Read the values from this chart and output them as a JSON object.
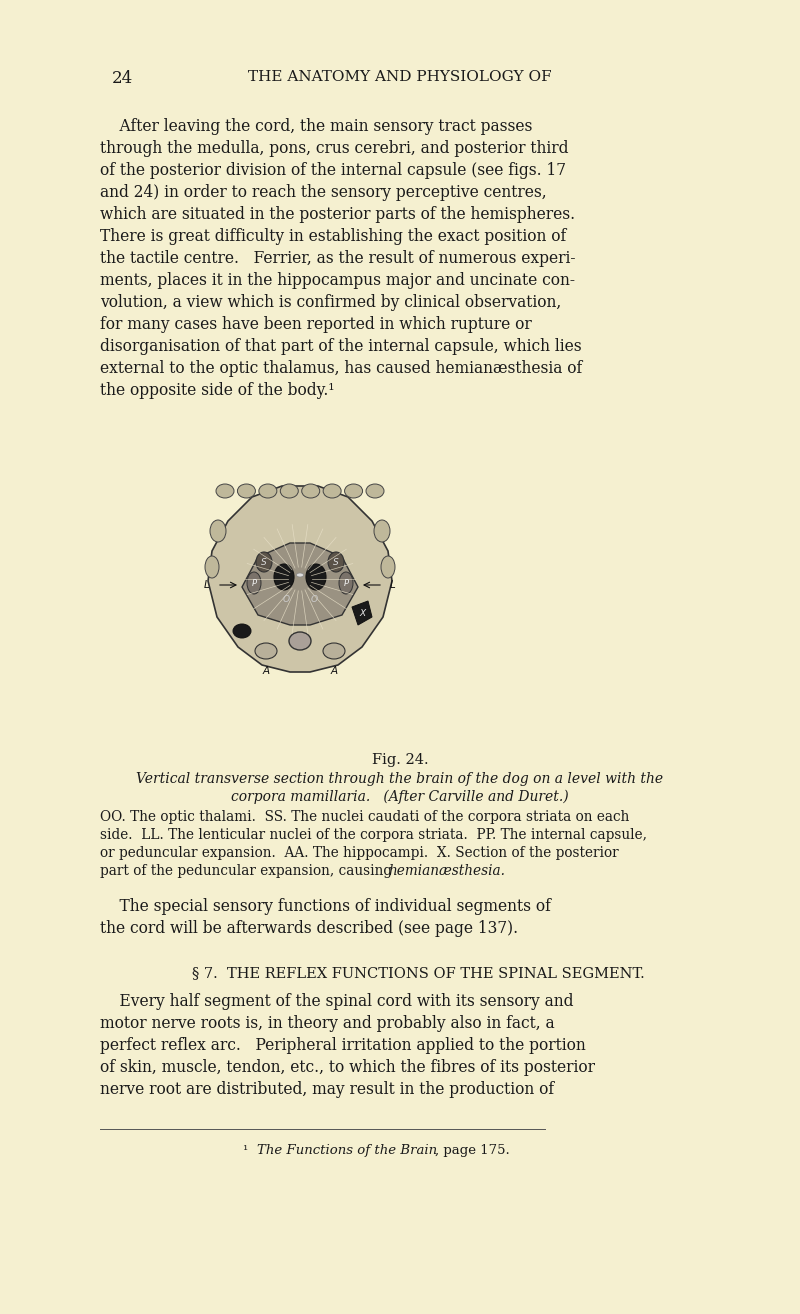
{
  "bg_color": "#f5f0d0",
  "page_width": 8.0,
  "page_height": 13.14,
  "dpi": 100,
  "text_color": "#1a1a1a",
  "header_num": "24",
  "header_title": "THE ANATOMY AND PHYSIOLOGY OF",
  "para1_lines": [
    "    After leaving the cord, the main sensory tract passes",
    "through the medulla, pons, crus cerebri, and posterior third",
    "of the posterior division of the internal capsule (see figs. 17",
    "and 24) in order to reach the sensory perceptive centres,",
    "which are situated in the posterior parts of the hemispheres.",
    "There is great difficulty in establishing the exact position of",
    "the tactile centre.   Ferrier, as the result of numerous experi-",
    "ments, places it in the hippocampus major and uncinate con-",
    "volution, a view which is confirmed by clinical observation,",
    "for many cases have been reported in which rupture or",
    "disorganisation of that part of the internal capsule, which lies",
    "external to the optic thalamus, has caused hemianæsthesia of",
    "the opposite side of the body.¹"
  ],
  "fig_label": "Fig. 24.",
  "fig_italic1": "Vertical transverse section through the brain of the dog on a level with the",
  "fig_italic2": "corpora mamillaria.   (After Carville and Duret.)",
  "legend_lines": [
    "OO. The optic thalami.  SS. The nuclei caudati of the corpora striata on each",
    "side.  LL. The lenticular nuclei of the corpora striata.  PP. The internal capsule,",
    "or peduncular expansion.  AA. The hippocampi.  X. Section of the posterior",
    "part of the peduncular expansion, causing "
  ],
  "legend_italic_end": "hemianæsthesia.",
  "para2_lines": [
    "    The special sensory functions of individual segments of",
    "the cord will be afterwards described (see page 137)."
  ],
  "section_header": "§ 7.  THE REFLEX FUNCTIONS OF THE SPINAL SEGMENT.",
  "para3_lines": [
    "    Every half segment of the spinal cord with its sensory and",
    "motor nerve roots is, in theory and probably also in fact, a",
    "perfect reflex arc.   Peripheral irritation applied to the portion",
    "of skin, muscle, tendon, etc., to which the fibres of its posterior",
    "nerve root are distributed, may result in the production of"
  ],
  "footnote_normal": "¹  ",
  "footnote_italic": "The Functions of the Brain",
  "footnote_end": ", page 175."
}
